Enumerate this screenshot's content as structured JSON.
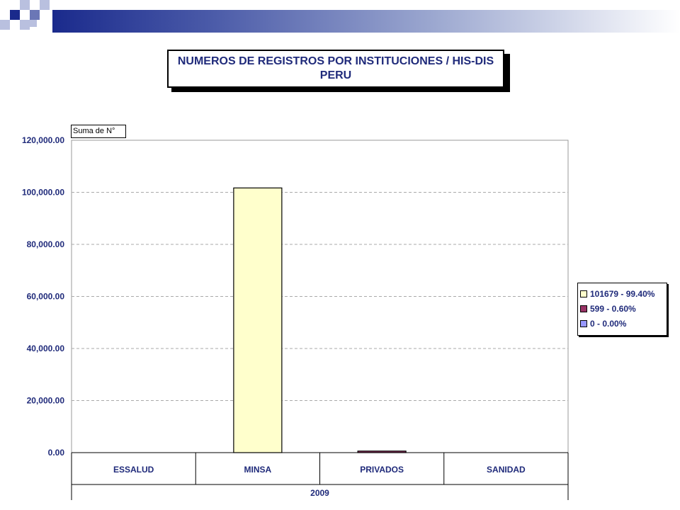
{
  "slide": {
    "colors": {
      "dark": "#1a2a8c",
      "mid": "#6b77b6",
      "light": "#b9c0df",
      "text": "#1f2a7a"
    }
  },
  "title": {
    "line1": "NUMEROS DE REGISTROS POR INSTITUCIONES / HIS-DIS",
    "line2": "PERU"
  },
  "chart_data": {
    "type": "bar",
    "pivot_field": "Suma de N°",
    "categories": [
      "ESSALUD",
      "MINSA",
      "PRIVADOS",
      "SANIDAD"
    ],
    "group_label": "2009",
    "values": [
      0,
      101679,
      599,
      0
    ],
    "bar_colors": [
      "#ffffcc",
      "#ffffcc",
      "#993366",
      "#9999ff"
    ],
    "ylim": [
      0,
      120000
    ],
    "yticks": [
      0,
      20000,
      40000,
      60000,
      80000,
      100000,
      120000
    ],
    "ytick_labels": [
      "0.00",
      "20,000.00",
      "40,000.00",
      "60,000.00",
      "80,000.00",
      "100,000.00",
      "120,000.00"
    ],
    "grid": true,
    "legend": {
      "position": "right",
      "entries": [
        {
          "label": "101679 - 99.40%",
          "color": "#ffffcc"
        },
        {
          "label": "599 - 0.60%",
          "color": "#993366"
        },
        {
          "label": "0 - 0.00%",
          "color": "#9999ff"
        }
      ]
    }
  }
}
